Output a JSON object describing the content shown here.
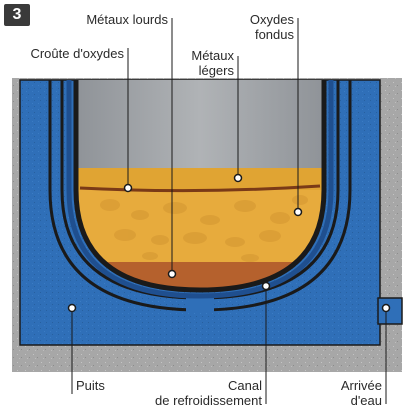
{
  "figure": {
    "number": "3"
  },
  "labels": {
    "metaux_lourds": "Métaux lourds",
    "oxydes_fondus_1": "Oxydes",
    "oxydes_fondus_2": "fondus",
    "croute": "Croûte d'oxydes",
    "metaux_legers_1": "Métaux",
    "metaux_legers_2": "légers",
    "puits": "Puits",
    "canal_1": "Canal",
    "canal_2": "de refroidissement",
    "arrivee_1": "Arrivée",
    "arrivee_2": "d'eau"
  },
  "colors": {
    "concrete": "#a6a6a6",
    "water_blue": "#2f6fb8",
    "dark_blue": "#1f4f8f",
    "steel_gray": "#9b9fa3",
    "oxide_yellow": "#e6a935",
    "crust_brown": "#7a3a17",
    "heavy_metal": "#b45f2c",
    "outline": "#1a1a1a"
  }
}
